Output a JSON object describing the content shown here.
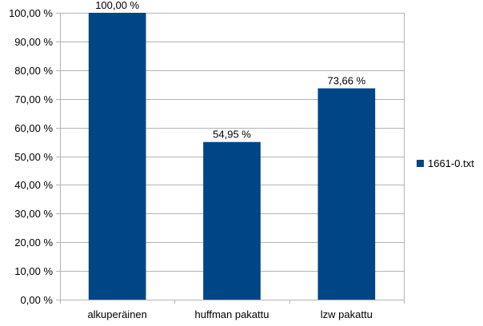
{
  "chart_data": {
    "type": "bar",
    "categories": [
      "alkuperäinen",
      "huffman pakattu",
      "lzw pakattu"
    ],
    "series": [
      {
        "name": "1661-0.txt",
        "values": [
          100.0,
          54.95,
          73.66
        ],
        "color": "#004586"
      }
    ],
    "data_labels": [
      "100,00 %",
      "54,95 %",
      "73,66 %"
    ],
    "ylim": [
      0,
      100
    ],
    "yticks": [
      "0,00 %",
      "10,00 %",
      "20,00 %",
      "30,00 %",
      "40,00 %",
      "50,00 %",
      "60,00 %",
      "70,00 %",
      "80,00 %",
      "90,00 %",
      "100,00 %"
    ],
    "grid": true,
    "legend_position": "right"
  }
}
